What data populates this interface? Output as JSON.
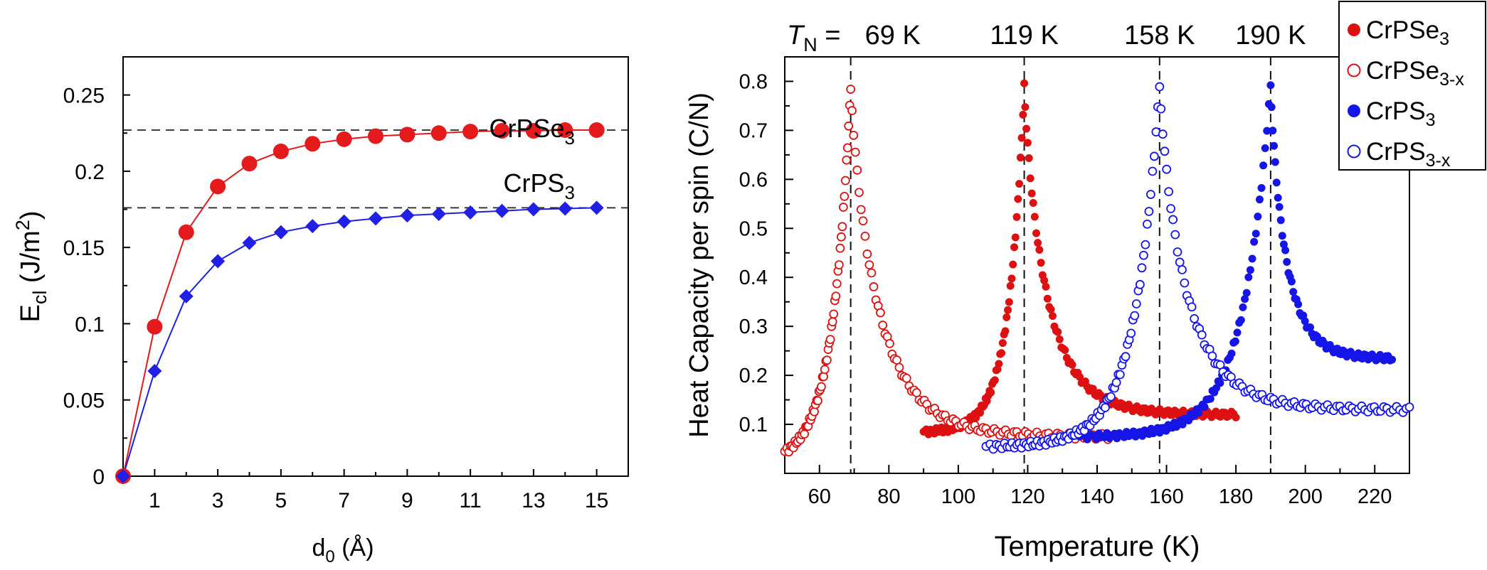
{
  "chart_data": [
    {
      "type": "line",
      "xlabel_main": "d",
      "xlabel_sub": "0",
      "xlabel_unit": " (Å)",
      "ylabel_main": "E",
      "ylabel_sub": "cl",
      "ylabel_unit_pre": " (J/m",
      "ylabel_unit_sup": "2",
      "ylabel_unit_post": ")",
      "xlim": [
        0,
        16
      ],
      "ylim": [
        0,
        0.275
      ],
      "xticks": [
        1,
        3,
        5,
        7,
        9,
        11,
        13,
        15
      ],
      "xtick_labels": [
        "1",
        "3",
        "5",
        "7",
        "9",
        "11",
        "13",
        "15"
      ],
      "yticks": [
        0,
        0.05,
        0.1,
        0.15,
        0.2,
        0.25
      ],
      "ytick_labels": [
        "0",
        "0.05",
        "0.1",
        "0.15",
        "0.2",
        "0.25"
      ],
      "hlines": [
        0.227,
        0.176
      ],
      "x": [
        0,
        1,
        2,
        3,
        4,
        5,
        6,
        7,
        8,
        9,
        10,
        11,
        12,
        13,
        14,
        15
      ],
      "series": [
        {
          "name": "CrPSe3",
          "label_main": "CrPSe",
          "label_sub": "3",
          "marker": "circle",
          "color": "#e41a1c",
          "values": [
            0,
            0.098,
            0.16,
            0.19,
            0.205,
            0.213,
            0.218,
            0.221,
            0.223,
            0.224,
            0.225,
            0.226,
            0.2265,
            0.2265,
            0.227,
            0.227
          ]
        },
        {
          "name": "CrPS3",
          "label_main": "CrPS",
          "label_sub": "3",
          "marker": "diamond",
          "color": "#1f1fe6",
          "values": [
            0,
            0.069,
            0.118,
            0.141,
            0.153,
            0.16,
            0.164,
            0.167,
            0.169,
            0.171,
            0.172,
            0.173,
            0.174,
            0.175,
            0.1755,
            0.176
          ]
        }
      ]
    },
    {
      "type": "scatter",
      "xlabel": "Temperature (K)",
      "ylabel": "Heat Capacity per spin (C/N)",
      "xlim": [
        50,
        230
      ],
      "ylim": [
        0,
        0.85
      ],
      "xticks": [
        60,
        80,
        100,
        120,
        140,
        160,
        180,
        200,
        220
      ],
      "xtick_labels": [
        "60",
        "80",
        "100",
        "120",
        "140",
        "160",
        "180",
        "200",
        "220"
      ],
      "yticks": [
        0.1,
        0.2,
        0.3,
        0.4,
        0.5,
        0.6,
        0.7,
        0.8
      ],
      "ytick_labels": [
        "0.1",
        "0.2",
        "0.3",
        "0.4",
        "0.5",
        "0.6",
        "0.7",
        "0.8"
      ],
      "tn_prefix": "T",
      "tn_sub": "N",
      "tn_eq": " = ",
      "transitions": [
        {
          "T": 69,
          "label": "69 K"
        },
        {
          "T": 119,
          "label": "119 K"
        },
        {
          "T": 158,
          "label": "158 K"
        },
        {
          "T": 190,
          "label": "190 K"
        }
      ],
      "legend_position": "top-right",
      "series": [
        {
          "name": "CrPSe3",
          "label_main": "CrPSe",
          "label_sub": "3",
          "filled": true,
          "color": "#dd1111",
          "Tc": 119,
          "peak": 0.79,
          "left": {
            "T": 90,
            "v": 0.085
          },
          "right": {
            "T": 180,
            "v": 0.12
          },
          "kl": 5.5,
          "kr": 7,
          "n_left": 70,
          "n_right": 110
        },
        {
          "name": "CrPSe3-x",
          "label_main": "CrPSe",
          "label_sub": "3-x",
          "filled": false,
          "color": "#dd1111",
          "Tc": 69,
          "peak": 0.79,
          "left": {
            "T": 50,
            "v": 0.045
          },
          "right": {
            "T": 144,
            "v": 0.075
          },
          "kl": 3,
          "kr": 7,
          "n_left": 55,
          "n_right": 100
        },
        {
          "name": "CrPS3",
          "label_main": "CrPS",
          "label_sub": "3",
          "filled": true,
          "color": "#1515e8",
          "Tc": 190,
          "peak": 0.795,
          "left": {
            "T": 135,
            "v": 0.075
          },
          "right": {
            "T": 225,
            "v": 0.235
          },
          "kl": 6,
          "kr": 6,
          "n_left": 90,
          "n_right": 70
        },
        {
          "name": "CrPS3-x",
          "label_main": "CrPS",
          "label_sub": "3-x",
          "filled": false,
          "color": "#1515e8",
          "Tc": 158,
          "peak": 0.795,
          "left": {
            "T": 108,
            "v": 0.055
          },
          "right": {
            "T": 230,
            "v": 0.13
          },
          "kl": 6,
          "kr": 7,
          "n_left": 85,
          "n_right": 90
        }
      ]
    }
  ]
}
